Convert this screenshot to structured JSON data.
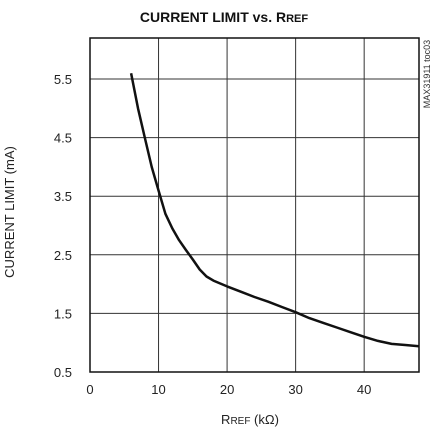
{
  "chart_data": {
    "type": "line",
    "title": {
      "main": "CURRENT LIMIT vs. R",
      "sub": "REF"
    },
    "xlabel": {
      "main": "R",
      "sub": "REF",
      "unit": " (kΩ)"
    },
    "ylabel": "CURRENT LIMIT (mA)",
    "figure_code": "MAX31911 toc03",
    "xlim": [
      0,
      48
    ],
    "ylim": [
      0.5,
      6.2
    ],
    "x_ticks": [
      0,
      10,
      20,
      30,
      40
    ],
    "y_ticks": [
      0.5,
      1.5,
      2.5,
      3.5,
      4.5,
      5.5
    ],
    "x_tick_labels": [
      "0",
      "10",
      "20",
      "30",
      "40"
    ],
    "y_tick_labels": [
      "0.5",
      "1.5",
      "2.5",
      "3.5",
      "4.5",
      "5.5"
    ],
    "grid": true,
    "series": [
      {
        "x": [
          6,
          7,
          8,
          9,
          10,
          11,
          12,
          13,
          14,
          15,
          16,
          17,
          18,
          20,
          22,
          24,
          26,
          28,
          30,
          32,
          34,
          36,
          38,
          40,
          42,
          44,
          46,
          48
        ],
        "y": [
          5.6,
          5.0,
          4.5,
          4.0,
          3.6,
          3.2,
          2.95,
          2.75,
          2.58,
          2.42,
          2.25,
          2.13,
          2.06,
          1.96,
          1.87,
          1.78,
          1.7,
          1.61,
          1.52,
          1.42,
          1.34,
          1.26,
          1.18,
          1.1,
          1.03,
          0.98,
          0.96,
          0.94
        ]
      }
    ]
  }
}
